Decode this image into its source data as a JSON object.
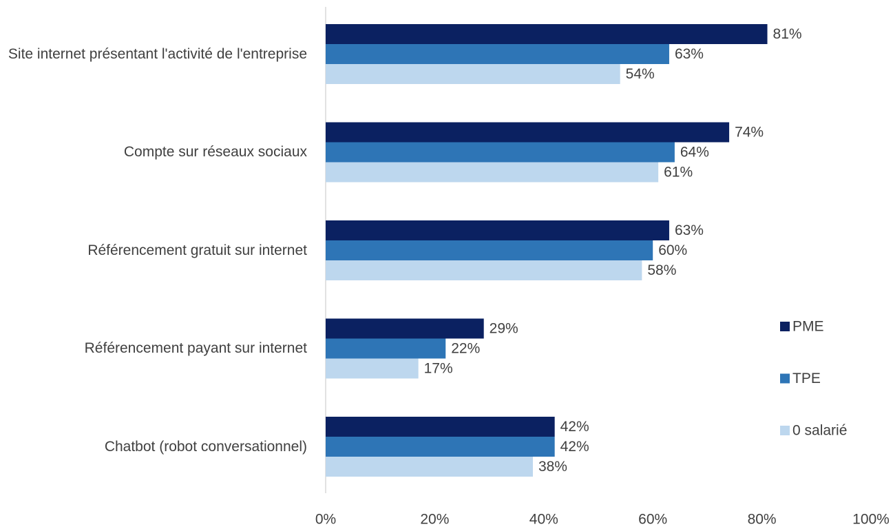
{
  "chart_data": {
    "type": "bar",
    "orientation": "horizontal",
    "categories": [
      "Site internet présentant l'activité de l'entreprise",
      "Compte sur réseaux sociaux",
      "Référencement gratuit sur internet",
      "Référencement payant sur internet",
      "Chatbot (robot conversationnel)"
    ],
    "series": [
      {
        "name": "PME",
        "color": "#0b2161",
        "values": [
          81,
          74,
          63,
          29,
          42
        ],
        "value_labels": [
          "81%",
          "74%",
          "63%",
          "29%",
          "42%"
        ]
      },
      {
        "name": "TPE",
        "color": "#2e75b6",
        "values": [
          63,
          64,
          60,
          22,
          42
        ],
        "value_labels": [
          "63%",
          "64%",
          "60%",
          "22%",
          "42%"
        ]
      },
      {
        "name": "0 salarié",
        "color": "#bdd7ee",
        "values": [
          54,
          61,
          58,
          17,
          38
        ],
        "value_labels": [
          "54%",
          "61%",
          "58%",
          "17%",
          "38%"
        ]
      }
    ],
    "xlim": [
      0,
      100
    ],
    "xticks": [
      {
        "value": 0,
        "label": "0%"
      },
      {
        "value": 20,
        "label": "20%"
      },
      {
        "value": 40,
        "label": "40%"
      },
      {
        "value": 60,
        "label": "60%"
      },
      {
        "value": 80,
        "label": "80%"
      },
      {
        "value": 100,
        "label": "100%"
      }
    ],
    "legend": "right",
    "grid": false
  }
}
